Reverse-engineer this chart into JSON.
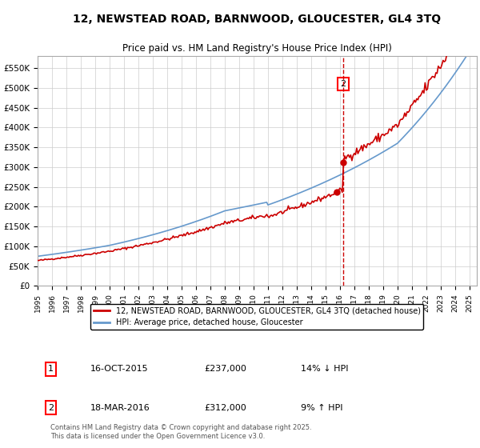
{
  "title": "12, NEWSTEAD ROAD, BARNWOOD, GLOUCESTER, GL4 3TQ",
  "subtitle": "Price paid vs. HM Land Registry's House Price Index (HPI)",
  "background_color": "#ffffff",
  "plot_bg_color": "#ffffff",
  "grid_color": "#cccccc",
  "ylabel": "",
  "yticks": [
    0,
    50000,
    100000,
    150000,
    200000,
    250000,
    300000,
    350000,
    400000,
    450000,
    500000,
    550000
  ],
  "ytick_labels": [
    "£0",
    "£50K",
    "£100K",
    "£150K",
    "£200K",
    "£250K",
    "£300K",
    "£350K",
    "£400K",
    "£450K",
    "£500K",
    "£550K"
  ],
  "x_start_year": 1995,
  "x_end_year": 2025,
  "sale1_date": 2015.79,
  "sale1_price": 237000,
  "sale1_label": "1",
  "sale2_date": 2016.21,
  "sale2_price": 312000,
  "sale2_label": "2",
  "hpi_color": "#6699cc",
  "price_color": "#cc0000",
  "dashed_line_color": "#cc0000",
  "legend_label_price": "12, NEWSTEAD ROAD, BARNWOOD, GLOUCESTER, GL4 3TQ (detached house)",
  "legend_label_hpi": "HPI: Average price, detached house, Gloucester",
  "transaction1_date": "16-OCT-2015",
  "transaction1_price": "£237,000",
  "transaction1_hpi": "14% ↓ HPI",
  "transaction2_date": "18-MAR-2016",
  "transaction2_price": "£312,000",
  "transaction2_hpi": "9% ↑ HPI",
  "footer": "Contains HM Land Registry data © Crown copyright and database right 2025.\nThis data is licensed under the Open Government Licence v3.0."
}
